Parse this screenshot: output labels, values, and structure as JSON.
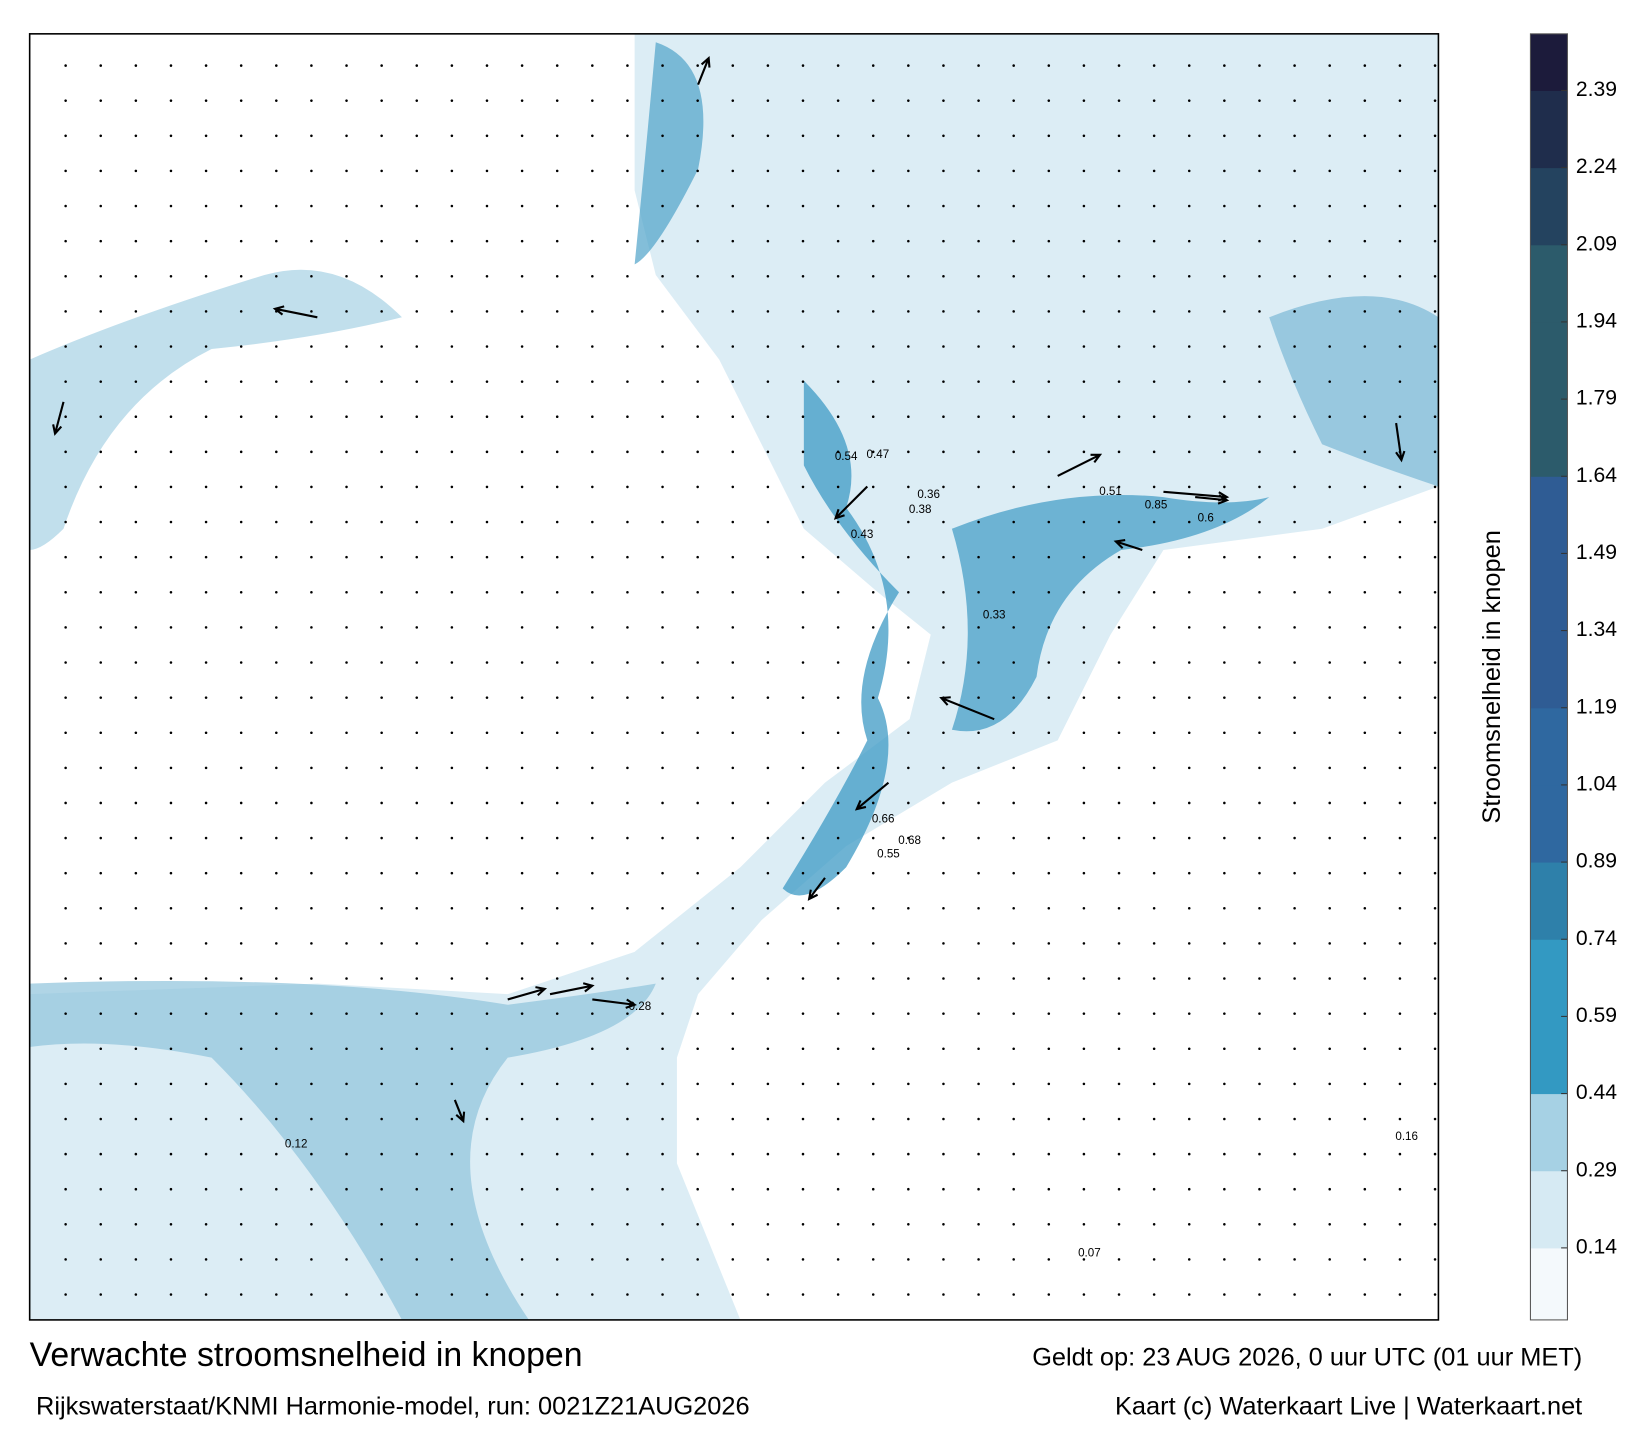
{
  "chart_data": {
    "type": "map",
    "title": "Verwachte stroomsnelheid in knopen",
    "subtitle": "Rijkswaterstaat/KNMI Harmonie-model, run: 0021Z21AUG2026",
    "valid_time": "Geldt op: 23 AUG 2026, 0 uur UTC (01 uur MET)",
    "credit": "Kaart (c) Waterkaart Live | Waterkaart.net",
    "colorbar_label": "Stroomsnelheid in knopen",
    "clim": [
      0,
      2.5
    ],
    "cticks": [
      0.14,
      0.29,
      0.44,
      0.59,
      0.74,
      0.89,
      1.04,
      1.19,
      1.34,
      1.49,
      1.64,
      1.79,
      1.94,
      2.09,
      2.24,
      2.39
    ],
    "colors": [
      "#f4f9fc",
      "#d6eaf3",
      "#a6d1e4",
      "#3399c2",
      "#3399c2",
      "#2e80aa",
      "#2f68a0",
      "#2f68a0",
      "#2f5c94",
      "#2f5c94",
      "#2f5c94",
      "#2c5b6b",
      "#2c5b6b",
      "#2c5b6b",
      "#24435f",
      "#1f2d4c",
      "#1c1b3b"
    ],
    "map_labels": [
      0.66,
      0.85,
      0.6,
      0.54,
      0.47,
      0.43,
      0.51,
      0.68,
      0.55,
      0.38,
      0.36,
      0.28,
      0.33,
      0.16,
      0.12,
      0.07
    ]
  }
}
